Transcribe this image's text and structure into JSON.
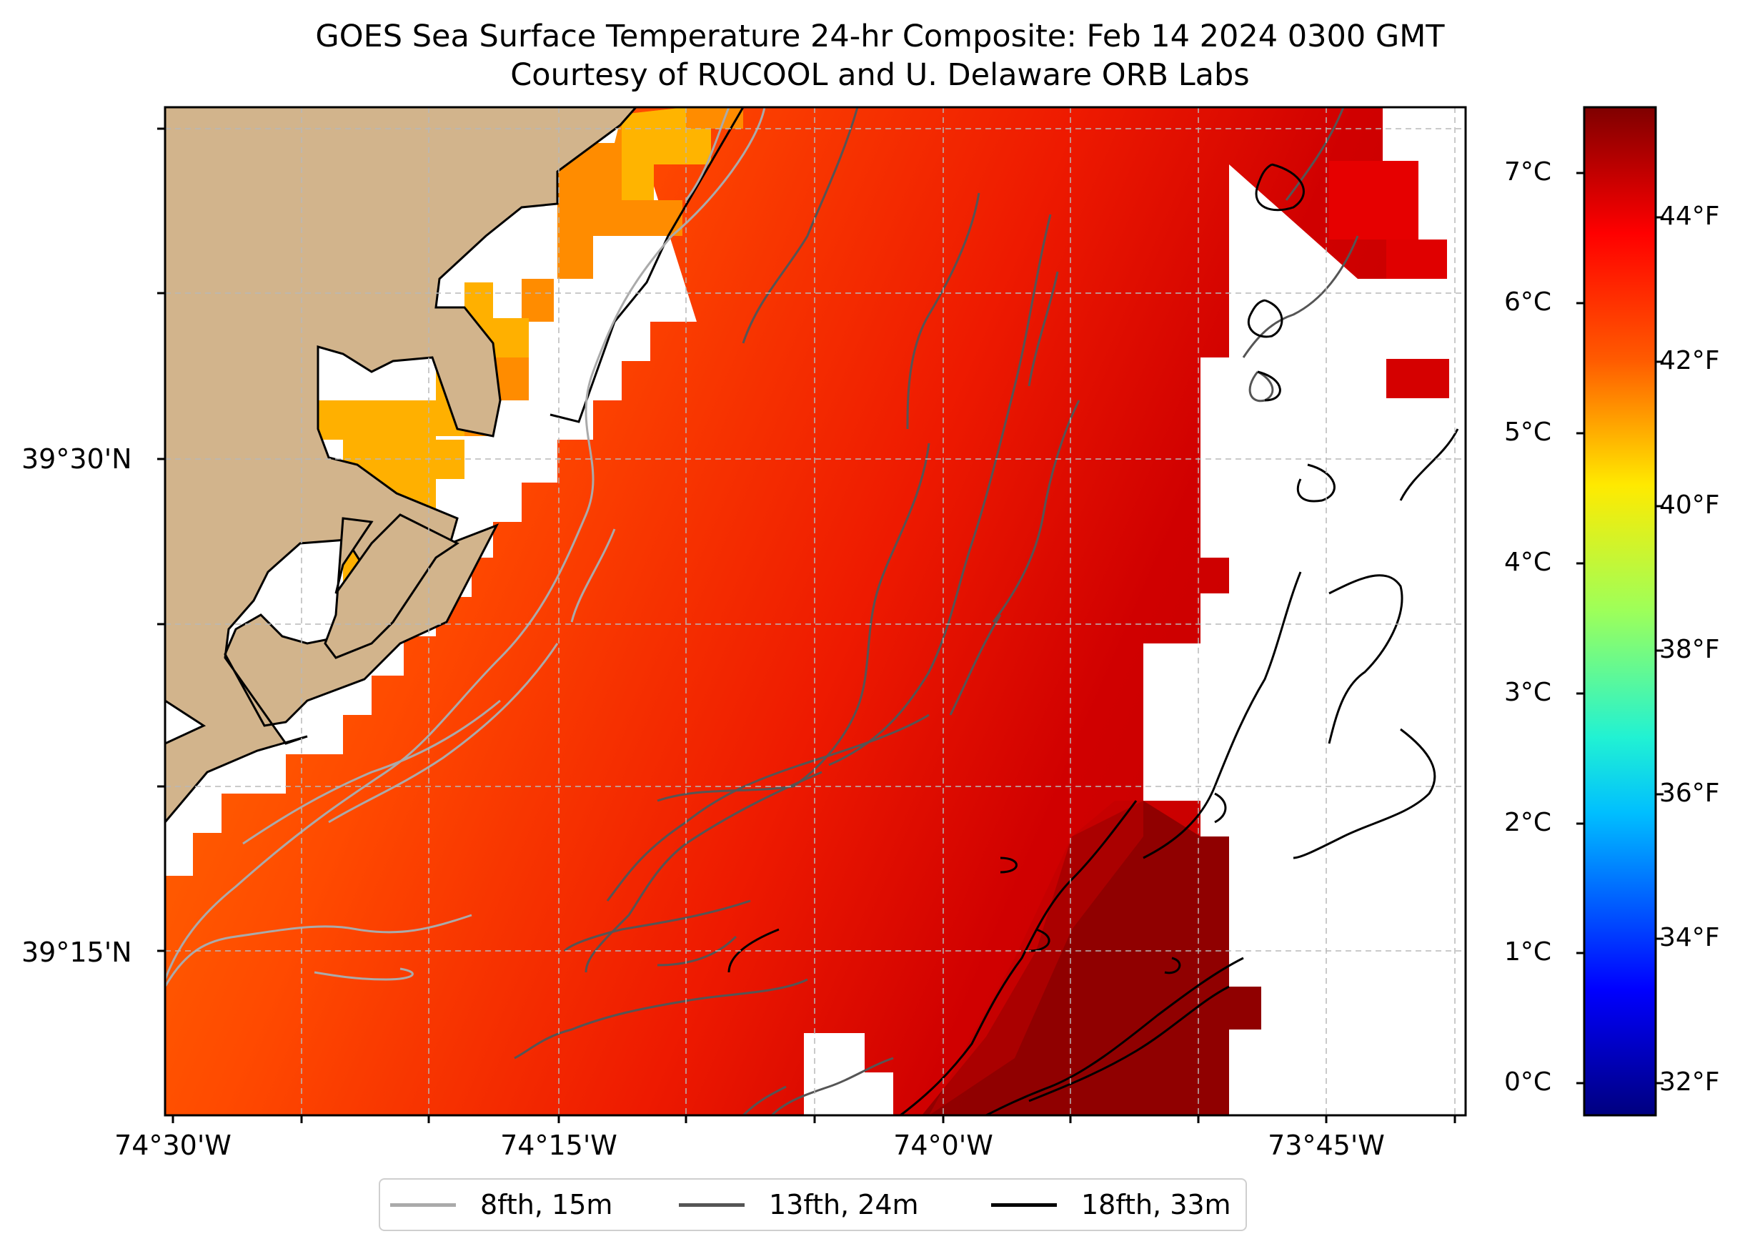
{
  "title": {
    "line1": "GOES Sea Surface Temperature 24-hr Composite: Feb 14 2024 0300 GMT",
    "line2": "Courtesy of RUCOOL and U. Delaware ORB Labs"
  },
  "axes": {
    "y_labels": [
      {
        "text": "39°30'N",
        "lat": 39.5
      },
      {
        "text": "39°15'N",
        "lat": 39.25
      }
    ],
    "x_labels": [
      {
        "text": "74°30'W",
        "lon": -74.5
      },
      {
        "text": "74°15'W",
        "lon": -74.25
      },
      {
        "text": "74°0'W",
        "lon": -74.0
      },
      {
        "text": "73°45'W",
        "lon": -73.75
      }
    ]
  },
  "colorbar": {
    "colormap": "jet",
    "celsius_range": [
      -0.25,
      7.5
    ],
    "celsius_labels": [
      "0°C",
      "1°C",
      "2°C",
      "3°C",
      "4°C",
      "5°C",
      "6°C",
      "7°C"
    ],
    "fahrenheit_labels": [
      "32°F",
      "34°F",
      "36°F",
      "38°F",
      "40°F",
      "42°F",
      "44°F"
    ],
    "colors": [
      "#00007f",
      "#0000ff",
      "#00bfff",
      "#21f2d3",
      "#9dff5a",
      "#ffea00",
      "#ff5a00",
      "#ff0000",
      "#7f0000"
    ]
  },
  "map": {
    "land_color": "#d2b48c",
    "sst_colors": {
      "cool": "#ffb000",
      "mid": "#ff4a00",
      "warm": "#e00000",
      "warmest": "#8a0000"
    }
  },
  "legend": [
    {
      "label": "8fth, 15m",
      "color": "#aaaaaa"
    },
    {
      "label": "13fth, 24m",
      "color": "#555555"
    },
    {
      "label": "18fth, 33m",
      "color": "#000000"
    }
  ]
}
